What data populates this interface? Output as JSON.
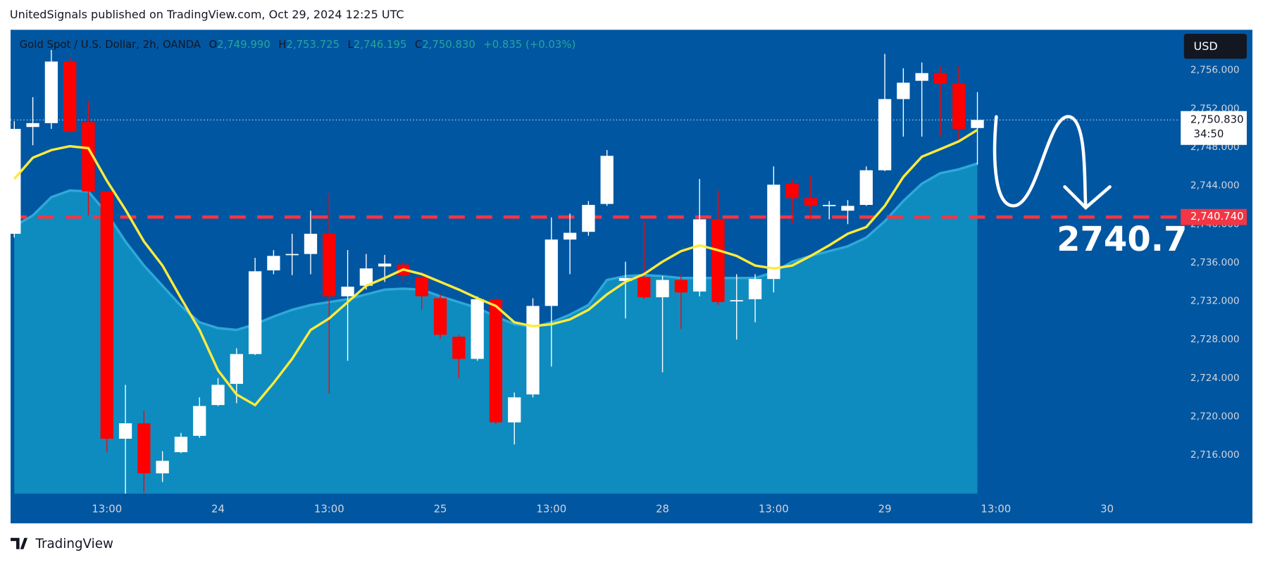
{
  "header": "UnitedSignals published on TradingView.com, Oct 29, 2024 12:25 UTC",
  "footer": "TradingView",
  "chart_data": {
    "type": "candlestick",
    "legend": {
      "symbol": "Gold Spot / U.S. Dollar, 2h, OANDA",
      "items": [
        {
          "key": "O",
          "text": "2,749.990"
        },
        {
          "key": "H",
          "text": "2,753.725"
        },
        {
          "key": "L",
          "text": "2,746.195"
        },
        {
          "key": "C",
          "text": "2,750.830"
        }
      ],
      "change": "+0.835 (+0.03%)"
    },
    "currency": "USD",
    "up_color": "#ffffff",
    "down_color": "#ff0000",
    "open": [
      2739.0,
      2750.1,
      2750.5,
      2756.9,
      2750.6,
      2743.4,
      2717.7,
      2719.3,
      2714.1,
      2716.3,
      2718.0,
      2721.2,
      2723.4,
      2726.5,
      2735.2,
      2736.8,
      2736.9,
      2739.0,
      2732.5,
      2733.6,
      2735.6,
      2735.8,
      2734.5,
      2732.3,
      2728.3,
      2726.0,
      2732.2,
      2719.4,
      2722.3,
      2731.5,
      2738.4,
      2739.2,
      2742.1,
      2734.1,
      2734.5,
      2732.4,
      2734.2,
      2733.0,
      2740.5,
      2732.0,
      2732.2,
      2734.3,
      2744.2,
      2742.7,
      2741.9,
      2741.4,
      2742.0,
      2745.6,
      2753.0,
      2754.9,
      2755.7,
      2754.6,
      2749.99
    ],
    "high": [
      2750.7,
      2753.2,
      2758.1,
      2757.4,
      2752.8,
      2743.4,
      2723.3,
      2720.6,
      2716.4,
      2718.3,
      2722.0,
      2724.0,
      2727.1,
      2736.5,
      2737.3,
      2739.0,
      2741.4,
      2743.2,
      2737.3,
      2736.9,
      2736.8,
      2736.1,
      2735.0,
      2732.7,
      2728.5,
      2732.5,
      2732.3,
      2722.5,
      2732.3,
      2740.7,
      2741.1,
      2742.4,
      2747.7,
      2736.1,
      2740.3,
      2734.6,
      2734.8,
      2744.7,
      2743.5,
      2734.8,
      2734.8,
      2746.0,
      2744.7,
      2745.0,
      2742.4,
      2742.5,
      2746.0,
      2757.7,
      2756.2,
      2756.8,
      2756.4,
      2756.4,
      2753.725
    ],
    "low": [
      2738.6,
      2748.2,
      2749.9,
      2749.5,
      2740.9,
      2716.3,
      2712.0,
      2712.1,
      2713.2,
      2716.2,
      2717.8,
      2721.1,
      2721.4,
      2726.4,
      2734.8,
      2734.7,
      2734.8,
      2722.4,
      2725.8,
      2733.2,
      2734.0,
      2734.0,
      2731.1,
      2728.1,
      2724.0,
      2725.8,
      2719.2,
      2717.1,
      2722.0,
      2725.2,
      2734.8,
      2738.8,
      2741.9,
      2730.2,
      2732.2,
      2724.6,
      2729.1,
      2732.5,
      2731.6,
      2728.0,
      2729.8,
      2732.9,
      2740.0,
      2740.4,
      2740.5,
      2740.0,
      2741.9,
      2745.5,
      2749.1,
      2749.1,
      2749.1,
      2748.6,
      2746.195
    ],
    "close": [
      2749.9,
      2750.5,
      2756.9,
      2749.6,
      2743.4,
      2717.7,
      2719.3,
      2714.1,
      2715.4,
      2717.9,
      2721.1,
      2723.3,
      2726.5,
      2735.1,
      2736.7,
      2736.9,
      2739.0,
      2732.5,
      2733.5,
      2735.4,
      2735.9,
      2734.7,
      2732.5,
      2728.5,
      2726.0,
      2732.2,
      2719.4,
      2722.0,
      2731.5,
      2738.4,
      2739.1,
      2742.0,
      2747.1,
      2734.4,
      2732.4,
      2734.2,
      2732.9,
      2740.5,
      2731.9,
      2732.1,
      2734.3,
      2744.1,
      2742.7,
      2741.9,
      2742.0,
      2741.9,
      2745.6,
      2753.0,
      2754.7,
      2755.7,
      2754.6,
      2749.9,
      2750.83
    ],
    "area": {
      "color": "#0e8cbf",
      "line_color": "#2fa8d8",
      "values": [
        2739.8,
        2740.9,
        2742.8,
        2743.5,
        2743.4,
        2741.1,
        2738.2,
        2735.7,
        2733.6,
        2731.5,
        2729.8,
        2729.2,
        2729.0,
        2729.6,
        2730.4,
        2731.1,
        2731.6,
        2731.9,
        2732.2,
        2732.7,
        2733.2,
        2733.3,
        2733.2,
        2732.5,
        2731.9,
        2731.3,
        2730.4,
        2729.6,
        2729.3,
        2729.8,
        2730.6,
        2731.6,
        2734.2,
        2734.6,
        2734.7,
        2734.6,
        2734.4,
        2734.4,
        2734.4,
        2734.4,
        2734.4,
        2735.0,
        2736.1,
        2736.7,
        2737.2,
        2737.7,
        2738.6,
        2740.3,
        2742.4,
        2744.2,
        2745.3,
        2745.7,
        2746.3
      ]
    },
    "line": {
      "color": "#ffeb3b",
      "values": [
        2744.7,
        2746.9,
        2747.7,
        2748.1,
        2747.9,
        2744.5,
        2741.5,
        2738.2,
        2735.7,
        2732.3,
        2729.0,
        2724.8,
        2722.3,
        2721.2,
        2723.5,
        2726.0,
        2729.0,
        2730.2,
        2731.9,
        2733.6,
        2734.4,
        2735.3,
        2734.8,
        2734.0,
        2733.2,
        2732.3,
        2731.5,
        2729.8,
        2729.4,
        2729.6,
        2730.1,
        2731.1,
        2732.7,
        2734.0,
        2734.8,
        2736.1,
        2737.2,
        2737.8,
        2737.3,
        2736.7,
        2735.7,
        2735.4,
        2735.7,
        2736.7,
        2737.8,
        2739.0,
        2739.7,
        2741.9,
        2744.9,
        2747.0,
        2747.8,
        2748.6,
        2749.8
      ]
    },
    "xlim": [
      -0.2,
      62.5
    ],
    "xticks": [
      {
        "value": 5,
        "label": "13:00"
      },
      {
        "value": 11,
        "label": "24"
      },
      {
        "value": 17,
        "label": "13:00"
      },
      {
        "value": 23,
        "label": "25"
      },
      {
        "value": 29,
        "label": "13:00"
      },
      {
        "value": 35,
        "label": "28"
      },
      {
        "value": 41,
        "label": "13:00"
      },
      {
        "value": 47,
        "label": "29"
      },
      {
        "value": 53,
        "label": "13:00"
      },
      {
        "value": 59,
        "label": "30"
      }
    ],
    "ylim": [
      2712.0,
      2760.2
    ],
    "yticks": [
      {
        "value": 2716,
        "label": "2,716.000"
      },
      {
        "value": 2720,
        "label": "2,720.000"
      },
      {
        "value": 2724,
        "label": "2,724.000"
      },
      {
        "value": 2728,
        "label": "2,728.000"
      },
      {
        "value": 2732,
        "label": "2,732.000"
      },
      {
        "value": 2736,
        "label": "2,736.000"
      },
      {
        "value": 2740,
        "label": "2,740.000"
      },
      {
        "value": 2744,
        "label": "2,744.000"
      },
      {
        "value": 2748,
        "label": "2,748.000"
      },
      {
        "value": 2752,
        "label": "2,752.000"
      },
      {
        "value": 2756,
        "label": "2,756.000"
      }
    ],
    "last_price": {
      "value": 2750.83,
      "label": "2,750.830",
      "countdown": "34:50"
    },
    "hline": {
      "value": 2740.74,
      "label": "2,740.740",
      "color": "#f23645"
    },
    "annotation": "2740.7"
  }
}
